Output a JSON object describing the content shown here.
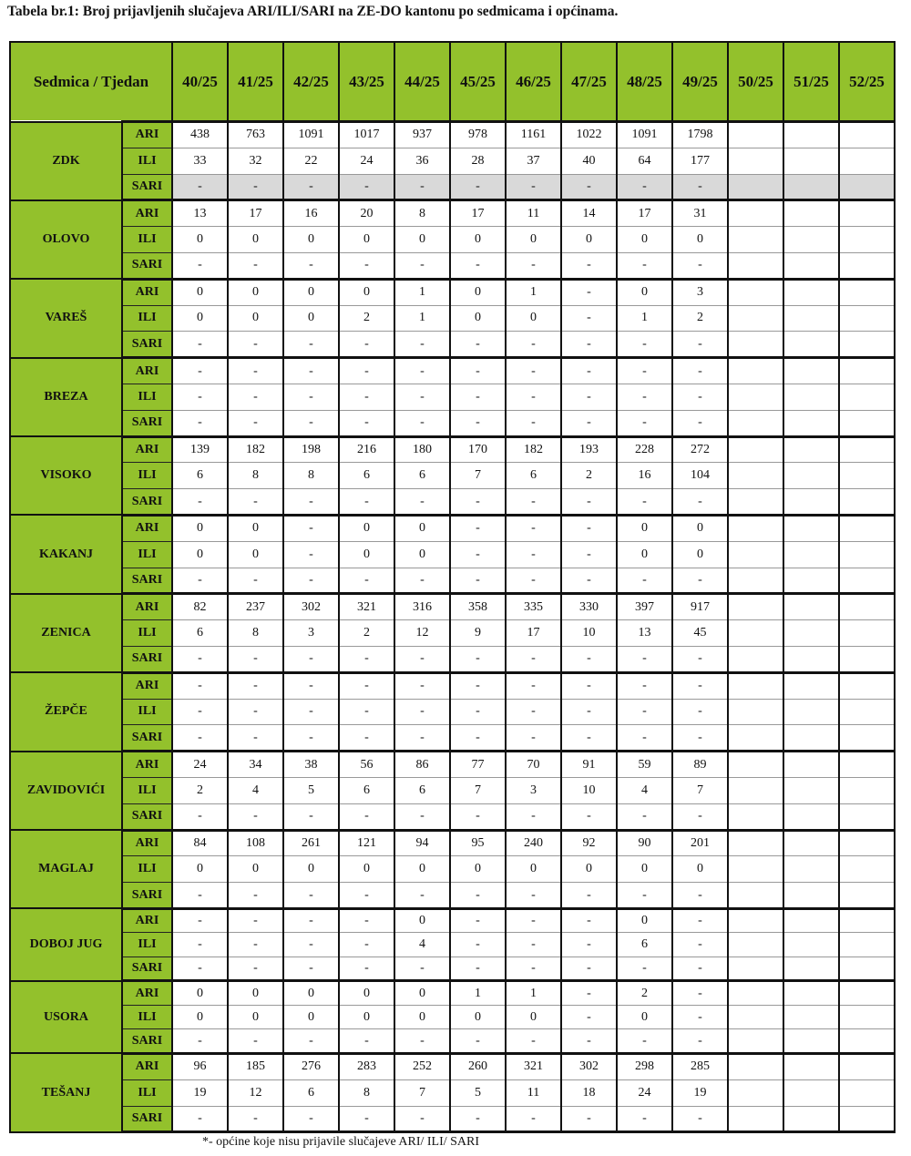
{
  "title": "Tabela br.1: Broj prijavljenih slučajeva ARI/ILI/SARI na ZE-DO kantonu po sedmicama i općinama.",
  "header_label": "Sedmica  / Tjedan",
  "weeks": [
    "40/25",
    "41/25",
    "42/25",
    "43/25",
    "44/25",
    "45/25",
    "46/25",
    "47/25",
    "48/25",
    "49/25",
    "50/25",
    "51/25",
    "52/25"
  ],
  "colors": {
    "header_green": "#93c12c",
    "shaded_row": "#d9d9d9"
  },
  "groups": [
    {
      "name": "ZDK",
      "shaded_sari": true,
      "rows": [
        {
          "type": "ARI",
          "values": [
            "438",
            "763",
            "1091",
            "1017",
            "937",
            "978",
            "1161",
            "1022",
            "1091",
            "1798",
            "",
            "",
            ""
          ]
        },
        {
          "type": "ILI",
          "values": [
            "33",
            "32",
            "22",
            "24",
            "36",
            "28",
            "37",
            "40",
            "64",
            "177",
            "",
            "",
            ""
          ]
        },
        {
          "type": "SARI",
          "values": [
            "-",
            "-",
            "-",
            "-",
            "-",
            "-",
            "-",
            "-",
            "-",
            "-",
            "",
            "",
            ""
          ]
        }
      ]
    },
    {
      "name": "OLOVO",
      "rows": [
        {
          "type": "ARI",
          "values": [
            "13",
            "17",
            "16",
            "20",
            "8",
            "17",
            "11",
            "14",
            "17",
            "31",
            "",
            "",
            ""
          ]
        },
        {
          "type": "ILI",
          "values": [
            "0",
            "0",
            "0",
            "0",
            "0",
            "0",
            "0",
            "0",
            "0",
            "0",
            "",
            "",
            ""
          ]
        },
        {
          "type": "SARI",
          "values": [
            "-",
            "-",
            "-",
            "-",
            "-",
            "-",
            "-",
            "-",
            "-",
            "-",
            "",
            "",
            ""
          ]
        }
      ]
    },
    {
      "name": "VAREŠ",
      "rows": [
        {
          "type": "ARI",
          "values": [
            "0",
            "0",
            "0",
            "0",
            "1",
            "0",
            "1",
            "-",
            "0",
            "3",
            "",
            "",
            ""
          ]
        },
        {
          "type": "ILI",
          "values": [
            "0",
            "0",
            "0",
            "2",
            "1",
            "0",
            "0",
            "-",
            "1",
            "2",
            "",
            "",
            ""
          ]
        },
        {
          "type": "SARI",
          "values": [
            "-",
            "-",
            "-",
            "-",
            "-",
            "-",
            "-",
            "-",
            "-",
            "-",
            "",
            "",
            ""
          ]
        }
      ]
    },
    {
      "name": "BREZA",
      "rows": [
        {
          "type": "ARI",
          "values": [
            "-",
            "-",
            "-",
            "-",
            "-",
            "-",
            "-",
            "-",
            "-",
            "-",
            "",
            "",
            ""
          ]
        },
        {
          "type": "ILI",
          "values": [
            "-",
            "-",
            "-",
            "-",
            "-",
            "-",
            "-",
            "-",
            "-",
            "-",
            "",
            "",
            ""
          ]
        },
        {
          "type": "SARI",
          "values": [
            "-",
            "-",
            "-",
            "-",
            "-",
            "-",
            "-",
            "-",
            "-",
            "-",
            "",
            "",
            ""
          ]
        }
      ]
    },
    {
      "name": "VISOKO",
      "rows": [
        {
          "type": "ARI",
          "values": [
            "139",
            "182",
            "198",
            "216",
            "180",
            "170",
            "182",
            "193",
            "228",
            "272",
            "",
            "",
            ""
          ]
        },
        {
          "type": "ILI",
          "values": [
            "6",
            "8",
            "8",
            "6",
            "6",
            "7",
            "6",
            "2",
            "16",
            "104",
            "",
            "",
            ""
          ]
        },
        {
          "type": "SARI",
          "values": [
            "-",
            "-",
            "-",
            "-",
            "-",
            "-",
            "-",
            "-",
            "-",
            "-",
            "",
            "",
            ""
          ]
        }
      ]
    },
    {
      "name": "KAKANJ",
      "rows": [
        {
          "type": "ARI",
          "values": [
            "0",
            "0",
            "-",
            "0",
            "0",
            "-",
            "-",
            "-",
            "0",
            "0",
            "",
            "",
            ""
          ]
        },
        {
          "type": "ILI",
          "values": [
            "0",
            "0",
            "-",
            "0",
            "0",
            "-",
            "-",
            "-",
            "0",
            "0",
            "",
            "",
            ""
          ]
        },
        {
          "type": "SARI",
          "values": [
            "-",
            "-",
            "-",
            "-",
            "-",
            "-",
            "-",
            "-",
            "-",
            "-",
            "",
            "",
            ""
          ]
        }
      ]
    },
    {
      "name": "ZENICA",
      "rows": [
        {
          "type": "ARI",
          "values": [
            "82",
            "237",
            "302",
            "321",
            "316",
            "358",
            "335",
            "330",
            "397",
            "917",
            "",
            "",
            ""
          ]
        },
        {
          "type": "ILI",
          "values": [
            "6",
            "8",
            "3",
            "2",
            "12",
            "9",
            "17",
            "10",
            "13",
            "45",
            "",
            "",
            ""
          ]
        },
        {
          "type": "SARI",
          "values": [
            "-",
            "-",
            "-",
            "-",
            "-",
            "-",
            "-",
            "-",
            "-",
            "-",
            "",
            "",
            ""
          ]
        }
      ]
    },
    {
      "name": "ŽEPČE",
      "rows": [
        {
          "type": "ARI",
          "values": [
            "-",
            "-",
            "-",
            "-",
            "-",
            "-",
            "-",
            "-",
            "-",
            "-",
            "",
            "",
            ""
          ]
        },
        {
          "type": "ILI",
          "values": [
            "-",
            "-",
            "-",
            "-",
            "-",
            "-",
            "-",
            "-",
            "-",
            "-",
            "",
            "",
            ""
          ]
        },
        {
          "type": "SARI",
          "values": [
            "-",
            "-",
            "-",
            "-",
            "-",
            "-",
            "-",
            "-",
            "-",
            "-",
            "",
            "",
            ""
          ]
        }
      ]
    },
    {
      "name": "ZAVIDOVIĆI",
      "rows": [
        {
          "type": "ARI",
          "values": [
            "24",
            "34",
            "38",
            "56",
            "86",
            "77",
            "70",
            "91",
            "59",
            "89",
            "",
            "",
            ""
          ]
        },
        {
          "type": "ILI",
          "values": [
            "2",
            "4",
            "5",
            "6",
            "6",
            "7",
            "3",
            "10",
            "4",
            "7",
            "",
            "",
            ""
          ]
        },
        {
          "type": "SARI",
          "values": [
            "-",
            "-",
            "-",
            "-",
            "-",
            "-",
            "-",
            "-",
            "-",
            "-",
            "",
            "",
            ""
          ]
        }
      ]
    },
    {
      "name": "MAGLAJ",
      "rows": [
        {
          "type": "ARI",
          "values": [
            "84",
            "108",
            "261",
            "121",
            "94",
            "95",
            "240",
            "92",
            "90",
            "201",
            "",
            "",
            ""
          ]
        },
        {
          "type": "ILI",
          "values": [
            "0",
            "0",
            "0",
            "0",
            "0",
            "0",
            "0",
            "0",
            "0",
            "0",
            "",
            "",
            ""
          ]
        },
        {
          "type": "SARI",
          "values": [
            "-",
            "-",
            "-",
            "-",
            "-",
            "-",
            "-",
            "-",
            "-",
            "-",
            "",
            "",
            ""
          ]
        }
      ]
    },
    {
      "name": "DOBOJ JUG",
      "compact": true,
      "rows": [
        {
          "type": "ARI",
          "values": [
            "-",
            "-",
            "-",
            "-",
            "0",
            "-",
            "-",
            "-",
            "0",
            "-",
            "",
            "",
            ""
          ]
        },
        {
          "type": "ILI",
          "values": [
            "-",
            "-",
            "-",
            "-",
            "4",
            "-",
            "-",
            "-",
            "6",
            "-",
            "",
            "",
            ""
          ]
        },
        {
          "type": "SARI",
          "values": [
            "-",
            "-",
            "-",
            "-",
            "-",
            "-",
            "-",
            "-",
            "-",
            "-",
            "",
            "",
            ""
          ]
        }
      ]
    },
    {
      "name": "USORA",
      "compact": true,
      "rows": [
        {
          "type": "ARI",
          "values": [
            "0",
            "0",
            "0",
            "0",
            "0",
            "1",
            "1",
            "-",
            "2",
            "-",
            "",
            "",
            ""
          ]
        },
        {
          "type": "ILI",
          "values": [
            "0",
            "0",
            "0",
            "0",
            "0",
            "0",
            "0",
            "-",
            "0",
            "-",
            "",
            "",
            ""
          ]
        },
        {
          "type": "SARI",
          "values": [
            "-",
            "-",
            "-",
            "-",
            "-",
            "-",
            "-",
            "-",
            "-",
            "-",
            "",
            "",
            ""
          ]
        }
      ]
    },
    {
      "name": "TEŠANJ",
      "rows": [
        {
          "type": "ARI",
          "values": [
            "96",
            "185",
            "276",
            "283",
            "252",
            "260",
            "321",
            "302",
            "298",
            "285",
            "",
            "",
            ""
          ]
        },
        {
          "type": "ILI",
          "values": [
            "19",
            "12",
            "6",
            "8",
            "7",
            "5",
            "11",
            "18",
            "24",
            "19",
            "",
            "",
            ""
          ]
        },
        {
          "type": "SARI",
          "values": [
            "-",
            "-",
            "-",
            "-",
            "-",
            "-",
            "-",
            "-",
            "-",
            "-",
            "",
            "",
            ""
          ]
        }
      ]
    }
  ],
  "footnote": "*- općine koje nisu prijavile slučajeve ARI/ ILI/ SARI"
}
